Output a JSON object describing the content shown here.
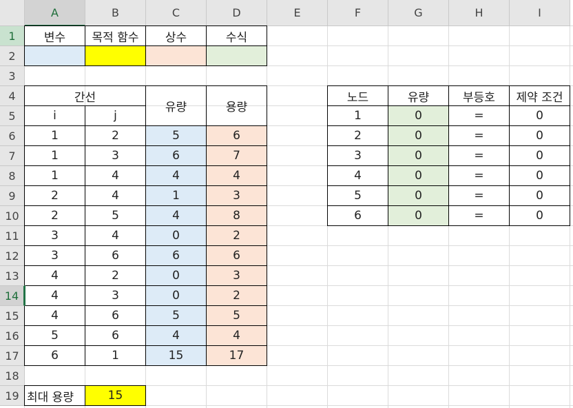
{
  "columns": [
    "A",
    "B",
    "C",
    "D",
    "E",
    "F",
    "G",
    "H",
    "I"
  ],
  "rows": [
    "1",
    "2",
    "3",
    "4",
    "5",
    "6",
    "7",
    "8",
    "9",
    "10",
    "11",
    "12",
    "13",
    "14",
    "15",
    "16",
    "17",
    "18",
    "19"
  ],
  "header_row1": {
    "var": "변수",
    "obj": "목적 함수",
    "const": "상수",
    "formula": "수식"
  },
  "edge_table": {
    "title": "간선",
    "col_i": "i",
    "col_j": "j",
    "col_flow": "유량",
    "col_cap": "용량",
    "rows": [
      {
        "i": "1",
        "j": "2",
        "flow": "5",
        "cap": "6"
      },
      {
        "i": "1",
        "j": "3",
        "flow": "6",
        "cap": "7"
      },
      {
        "i": "1",
        "j": "4",
        "flow": "4",
        "cap": "4"
      },
      {
        "i": "2",
        "j": "4",
        "flow": "1",
        "cap": "3"
      },
      {
        "i": "2",
        "j": "5",
        "flow": "4",
        "cap": "8"
      },
      {
        "i": "3",
        "j": "4",
        "flow": "0",
        "cap": "2"
      },
      {
        "i": "3",
        "j": "6",
        "flow": "6",
        "cap": "6"
      },
      {
        "i": "4",
        "j": "2",
        "flow": "0",
        "cap": "3"
      },
      {
        "i": "4",
        "j": "3",
        "flow": "0",
        "cap": "2"
      },
      {
        "i": "4",
        "j": "6",
        "flow": "5",
        "cap": "5"
      },
      {
        "i": "5",
        "j": "6",
        "flow": "4",
        "cap": "4"
      },
      {
        "i": "6",
        "j": "1",
        "flow": "15",
        "cap": "17"
      }
    ]
  },
  "node_table": {
    "col_node": "노드",
    "col_flow": "유량",
    "col_ineq": "부등호",
    "col_constraint": "제약 조건",
    "rows": [
      {
        "node": "1",
        "flow": "0",
        "ineq": "=",
        "constraint": "0"
      },
      {
        "node": "2",
        "flow": "0",
        "ineq": "=",
        "constraint": "0"
      },
      {
        "node": "3",
        "flow": "0",
        "ineq": "=",
        "constraint": "0"
      },
      {
        "node": "4",
        "flow": "0",
        "ineq": "=",
        "constraint": "0"
      },
      {
        "node": "5",
        "flow": "0",
        "ineq": "=",
        "constraint": "0"
      },
      {
        "node": "6",
        "flow": "0",
        "ineq": "=",
        "constraint": "0"
      }
    ]
  },
  "max_capacity": {
    "label": "최대 용량",
    "value": "15"
  },
  "selected": {
    "column": "A",
    "row": "14"
  },
  "colors": {
    "blue": "#ddebf7",
    "yellow": "#ffff00",
    "pink": "#fce4d6",
    "green": "#e2efda",
    "accent": "#217346"
  }
}
